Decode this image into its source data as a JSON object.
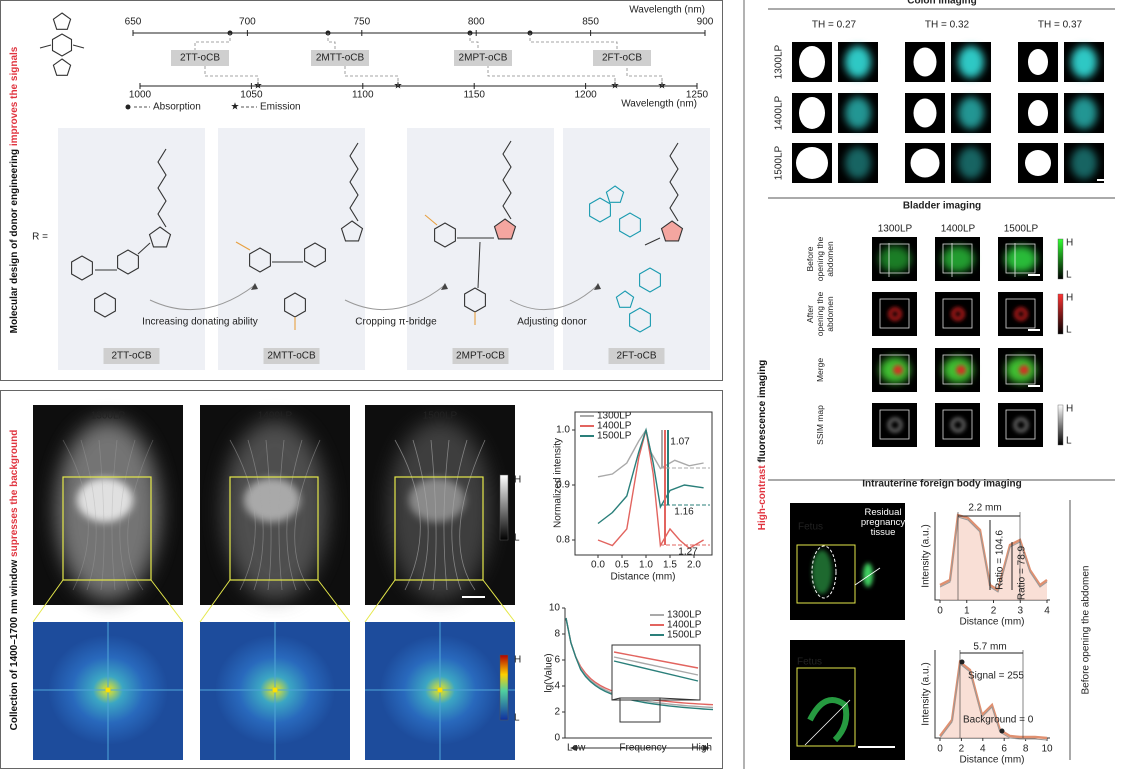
{
  "panel_a": {
    "side_title": "Molecular design of donor engineering ",
    "side_title_highlight": "improves the signals",
    "absorption_axis": {
      "label": "Wavelength (nm)",
      "ticks": [
        "650",
        "700",
        "750",
        "800",
        "850",
        "900"
      ]
    },
    "emission_axis": {
      "label": "Wavelength (nm)",
      "ticks": [
        "1000",
        "1050",
        "1100",
        "1150",
        "1200",
        "1250"
      ]
    },
    "compounds": [
      "2TT-oCB",
      "2MTT-oCB",
      "2MPT-oCB",
      "2FT-oCB"
    ],
    "legend": [
      "Absorption",
      "Emission"
    ],
    "r_label": "R =",
    "steps": [
      "Increasing donating ability",
      "Cropping π-bridge",
      "Adjusting donor"
    ]
  },
  "panel_b": {
    "side_title": "Collection of 1400–1700 nm window ",
    "side_title_highlight": "supresses the background",
    "filters": [
      "1300LP",
      "1400LP",
      "1500LP"
    ],
    "colorbar": [
      "H",
      "L"
    ],
    "profile_chart": {
      "y_label": "Normalized intensity",
      "x_label": "Distance (mm)",
      "yticks": [
        "0.8",
        "0.9",
        "1.0"
      ],
      "xticks": [
        "0.0",
        "0.5",
        "1.0",
        "1.5",
        "2.0"
      ],
      "legend": [
        "1300LP",
        "1400LP",
        "1500LP"
      ],
      "annotations": [
        "1.07",
        "1.16",
        "1.27"
      ]
    },
    "spectrum_chart": {
      "y_label": "lg(Value)",
      "x_label": "Frequency",
      "xticks": [
        "Low",
        "High"
      ],
      "yticks": [
        "0",
        "2",
        "4",
        "6",
        "8",
        "10"
      ],
      "legend": [
        "1300LP",
        "1400LP",
        "1500LP"
      ]
    }
  },
  "panel_c": {
    "side_title_highlight": "High-contrast",
    "side_title": " fluorescence imaging",
    "colon": {
      "title": "Colon imaging",
      "thresholds": [
        "TH = 0.27",
        "TH = 0.32",
        "TH = 0.37"
      ],
      "rows": [
        "1300LP",
        "1400LP",
        "1500LP"
      ]
    },
    "bladder": {
      "title": "Bladder imaging",
      "columns": [
        "1300LP",
        "1400LP",
        "1500LP"
      ],
      "rows": [
        "Before opening the abdomen",
        "After opening the abdomen",
        "Merge",
        "SSIM map"
      ],
      "colorbar": [
        "H",
        "L"
      ]
    },
    "intrauterine": {
      "title": "Intrauterine foreign body imaging",
      "side_label": "Before opening the abdomen",
      "top": {
        "image_labels": [
          "Fetus",
          "Residual pregnancy tissue"
        ],
        "y_label": "Intensity (a.u.)",
        "x_label": "Distance (mm)",
        "xticks": [
          "0",
          "1",
          "2",
          "3",
          "4"
        ],
        "annotations": [
          "2.2 mm",
          "Ratio = 104.6",
          "Ratio = 78.9"
        ]
      },
      "bottom": {
        "image_labels": [
          "Fetus"
        ],
        "y_label": "Intensity (a.u.)",
        "x_label": "Distance (mm)",
        "xticks": [
          "0",
          "2",
          "4",
          "6",
          "8",
          "10"
        ],
        "annotations": [
          "5.7 mm",
          "Signal = 255",
          "Background = 0"
        ]
      }
    }
  }
}
